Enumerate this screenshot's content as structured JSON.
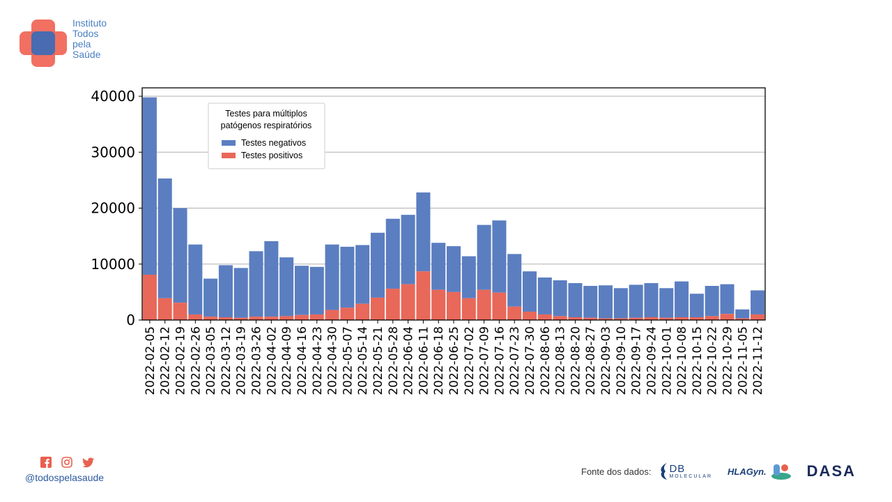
{
  "brand": {
    "lines": [
      "Instituto",
      "Todos",
      "pela",
      "Saúde"
    ],
    "colors": {
      "cross_red": "#f06455",
      "cross_blue": "#3f6bb5",
      "text": "#4a7fc1"
    }
  },
  "social": {
    "icons": [
      "facebook-icon",
      "instagram-icon",
      "twitter-icon"
    ],
    "handle": "@todospelasaude"
  },
  "sources": {
    "label": "Fonte dos dados:",
    "db_main": "DB",
    "db_sub": "MOLECULAR",
    "hla": "HLAGyn.",
    "dasa": "DASA"
  },
  "chart_data": {
    "type": "bar",
    "stacked": true,
    "categories": [
      "2022-02-05",
      "2022-02-12",
      "2022-02-19",
      "2022-02-26",
      "2022-03-05",
      "2022-03-12",
      "2022-03-19",
      "2022-03-26",
      "2022-04-02",
      "2022-04-09",
      "2022-04-16",
      "2022-04-23",
      "2022-04-30",
      "2022-05-07",
      "2022-05-14",
      "2022-05-21",
      "2022-05-28",
      "2022-06-04",
      "2022-06-11",
      "2022-06-18",
      "2022-06-25",
      "2022-07-02",
      "2022-07-09",
      "2022-07-16",
      "2022-07-23",
      "2022-07-30",
      "2022-08-06",
      "2022-08-13",
      "2022-08-20",
      "2022-08-27",
      "2022-09-03",
      "2022-09-10",
      "2022-09-17",
      "2022-09-24",
      "2022-10-01",
      "2022-10-08",
      "2022-10-15",
      "2022-10-22",
      "2022-10-29",
      "2022-11-05",
      "2022-11-12"
    ],
    "series": [
      {
        "name": "Testes positivos",
        "color": "#e8685a",
        "values": [
          8100,
          3900,
          3100,
          1000,
          600,
          500,
          400,
          600,
          600,
          700,
          900,
          1000,
          1800,
          2200,
          2900,
          4000,
          5600,
          6400,
          8700,
          5400,
          5000,
          3900,
          5400,
          4900,
          2400,
          1500,
          1000,
          700,
          500,
          400,
          300,
          300,
          400,
          500,
          400,
          500,
          500,
          700,
          1100,
          300,
          1000
        ]
      },
      {
        "name": "Testes negativos",
        "color": "#5b7ec1",
        "values": [
          31700,
          21400,
          16900,
          12500,
          6800,
          9300,
          8900,
          11700,
          13500,
          10500,
          8800,
          8500,
          11700,
          10900,
          10500,
          11600,
          12500,
          12400,
          14100,
          8400,
          8200,
          7500,
          11600,
          12900,
          9400,
          7200,
          6600,
          6400,
          6100,
          5700,
          5900,
          5400,
          5900,
          6100,
          5300,
          6400,
          4200,
          5400,
          5300,
          1600,
          4300
        ]
      }
    ],
    "ylim": [
      0,
      41500
    ],
    "yticks": [
      0,
      10000,
      20000,
      30000,
      40000
    ],
    "grid": true,
    "legend": {
      "title_lines": [
        "Testes para múltiplos",
        "patógenos respiratórios"
      ],
      "entries": [
        "Testes negativos",
        "Testes positivos"
      ],
      "position": "top-left"
    }
  }
}
